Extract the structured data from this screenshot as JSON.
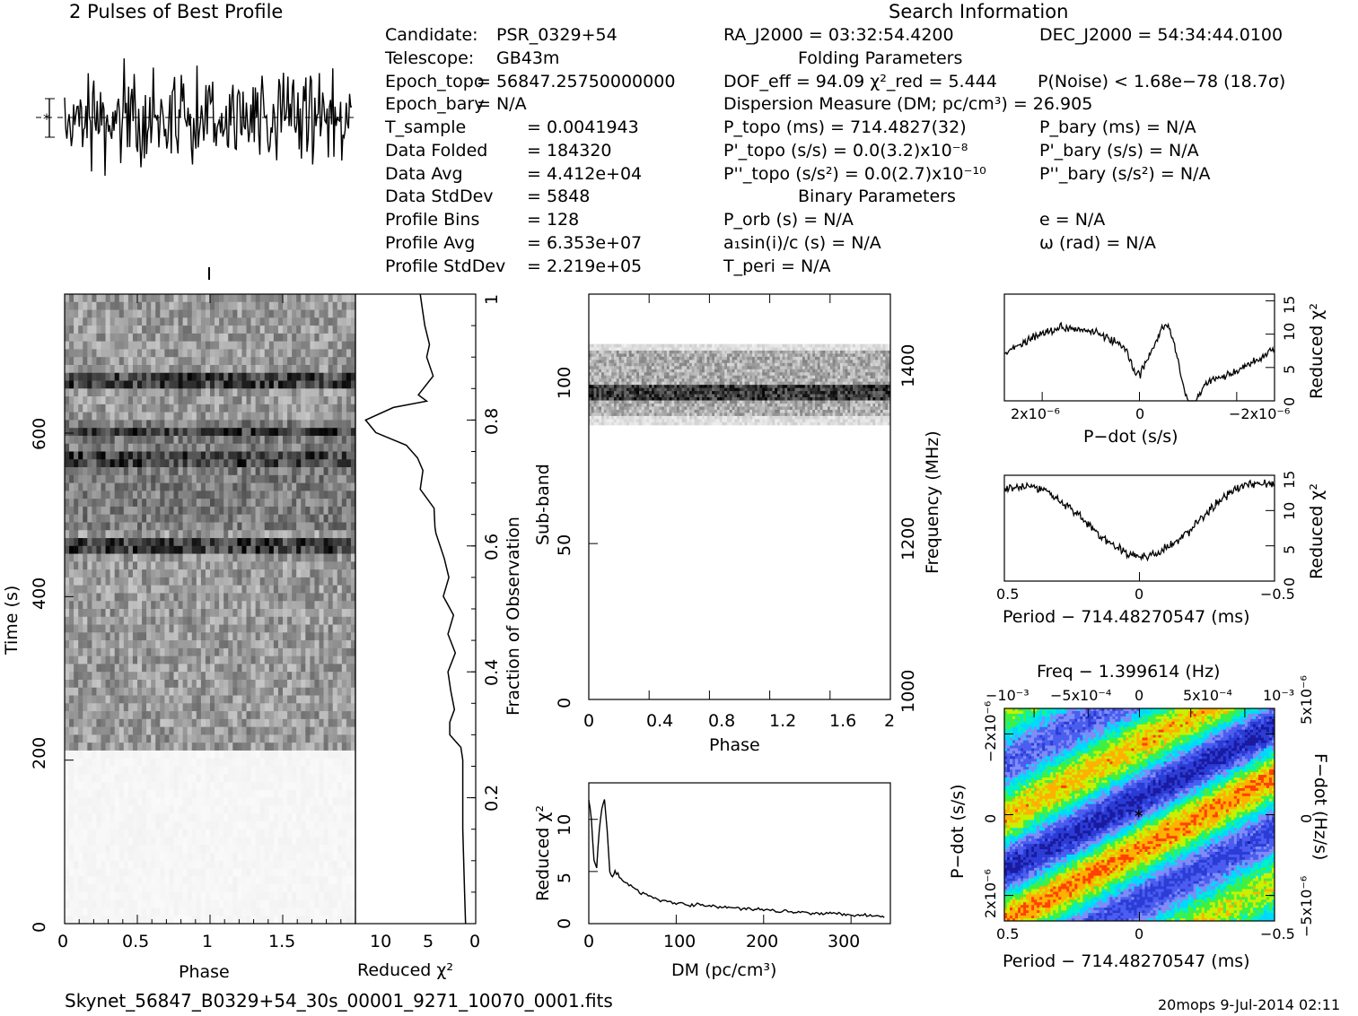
{
  "header": {
    "profile_title": "2 Pulses of Best Profile",
    "search_title": "Search Information",
    "folding_title": "Folding Parameters",
    "binary_title": "Binary Parameters"
  },
  "info_left": [
    {
      "label": "Candidate:",
      "value": "PSR_0329+54"
    },
    {
      "label": "Telescope:",
      "value": "GB43m"
    },
    {
      "label": "Epoch_topo",
      "value": "= 56847.25750000000"
    },
    {
      "label": "Epoch_bary",
      "value": "= N/A"
    },
    {
      "label": "T_sample",
      "value": "0.0041943"
    },
    {
      "label": "Data Folded",
      "value": "184320"
    },
    {
      "label": "Data Avg",
      "value": "4.412e+04"
    },
    {
      "label": "Data StdDev",
      "value": "5848"
    },
    {
      "label": "Profile Bins",
      "value": "128"
    },
    {
      "label": "Profile Avg",
      "value": "6.353e+07"
    },
    {
      "label": "Profile StdDev",
      "value": "2.219e+05"
    }
  ],
  "info_right": {
    "ra": "RA_J2000 = 03:32:54.4200",
    "dec": "DEC_J2000 = 54:34:44.0100",
    "dof": "DOF_eff = 94.09  χ²_red = 5.444",
    "pnoise": "P(Noise) < 1.68e−78   (18.7σ)",
    "dm": "Dispersion Measure (DM; pc/cm³) = 26.905",
    "ptopo": "P_topo (ms) =  714.4827(32)",
    "pbary": "P_bary (ms) = N/A",
    "pdtopo": "P'_topo (s/s) = 0.0(3.2)x10⁻⁸",
    "pdbary": "P'_bary (s/s) = N/A",
    "pddtopo": "P''_topo (s/s²) = 0.0(2.7)x10⁻¹⁰",
    "pddbary": "P''_bary (s/s²) = N/A",
    "porb": "P_orb (s) = N/A",
    "ecc": "e = N/A",
    "asini": "a₁sin(i)/c (s) = N/A",
    "omega": "ω (rad) = N/A",
    "tperi": "T_peri = N/A"
  },
  "axes": {
    "time_ylabel": "Time (s)",
    "phase_xlabel": "Phase",
    "redchi_xlabel": "Reduced χ²",
    "fraction_label": "Fraction of Observation",
    "subband_label": "Sub-band",
    "freq_label": "Frequency (MHz)",
    "phase2_label": "Phase",
    "dm_xlabel": "DM (pc/cm³)",
    "dm_ylabel": "Reduced χ²",
    "pdot_xlabel": "P−dot (s/s)",
    "pdot_ylabel": "Reduced χ²",
    "period_xlabel": "Period − 714.48270547 (ms)",
    "period_ylabel": "Reduced χ²",
    "freq_top_label": "Freq − 1.399614 (Hz)",
    "ppdot_xlabel": "Period − 714.48270547 (ms)",
    "ppdot_ylabel": "P−dot (s/s)",
    "fdot_label": "F−dot (Hz/s)"
  },
  "ticks": {
    "time_y": [
      "0",
      "200",
      "400",
      "600"
    ],
    "phase_x": [
      "0",
      "0.5",
      "1",
      "1.5"
    ],
    "redchi_x": [
      "10",
      "5",
      "0"
    ],
    "fraction": [
      "0.2",
      "0.4",
      "0.6",
      "0.8",
      "1"
    ],
    "subband": [
      "0",
      "50",
      "100"
    ],
    "freq": [
      "1000",
      "1200",
      "1400"
    ],
    "phase2": [
      "0",
      "0.4",
      "0.8",
      "1.2",
      "1.6",
      "2"
    ],
    "dm_x": [
      "0",
      "100",
      "200",
      "300"
    ],
    "dm_y": [
      "0",
      "5",
      "10"
    ],
    "pdot_x": [
      "2x10⁻⁶",
      "0",
      "−2x10⁻⁶"
    ],
    "chi_y": [
      "0",
      "5",
      "10",
      "15"
    ],
    "period_x": [
      "0.5",
      "0",
      "−0.5"
    ],
    "freq_top": [
      "−10⁻³",
      "−5x10⁻⁴",
      "0",
      "5x10⁻⁴",
      "10⁻³"
    ],
    "ppdot_y": [
      "−2x10⁻⁶",
      "0",
      "2x10⁻⁶"
    ],
    "fdot": [
      "5x10⁻⁶",
      "0",
      "−5x10⁻⁶"
    ]
  },
  "footer": {
    "filename": "Skynet_56847_B0329+54_30s_00001_9271_10070_0001.fits",
    "stamp": "20mops   9-Jul-2014 02:11"
  },
  "chart_data": [
    {
      "type": "line",
      "name": "profile",
      "title": "2 Pulses of Best Profile",
      "x_range": [
        0,
        2
      ],
      "bins": 128,
      "pulses": 2
    },
    {
      "type": "heatmap",
      "name": "time-phase",
      "xlabel": "Phase",
      "ylabel": "Time (s)",
      "xlim": [
        0,
        2
      ],
      "ylim": [
        0,
        770
      ],
      "dark_bands_s": [
        [
          655,
          675
        ],
        [
          555,
          575
        ],
        [
          450,
          470
        ],
        [
          595,
          610
        ]
      ],
      "data_start_s": 210
    },
    {
      "type": "line",
      "name": "reduced-chi2-vs-time",
      "xlabel": "Reduced χ²",
      "xlim": [
        13,
        0
      ],
      "x": [
        6,
        5.8,
        5.5,
        5,
        5.3,
        4.6,
        6.2,
        5.3,
        8.9,
        11.9,
        10.8,
        7.5,
        6.3,
        5.7,
        6.0,
        4.5,
        4.4,
        4.3,
        3.4,
        2.9,
        3.5,
        2.4,
        3.0,
        2.2,
        3.0,
        2.7,
        2.3,
        2.8,
        2.8,
        1.6,
        1.4,
        1.4,
        1.4,
        1.3,
        1.2,
        1.1
      ],
      "y_fraction": [
        1.0,
        0.98,
        0.95,
        0.92,
        0.9,
        0.87,
        0.84,
        0.83,
        0.82,
        0.8,
        0.78,
        0.76,
        0.74,
        0.72,
        0.69,
        0.66,
        0.63,
        0.62,
        0.58,
        0.55,
        0.52,
        0.49,
        0.46,
        0.43,
        0.4,
        0.37,
        0.34,
        0.32,
        0.3,
        0.28,
        0.26,
        0.2,
        0.15,
        0.1,
        0.05,
        0.0
      ]
    },
    {
      "type": "heatmap",
      "name": "subband-phase",
      "xlabel": "Phase",
      "ylabel": "Sub-band",
      "xlim": [
        0,
        2
      ],
      "ylim": [
        0,
        128
      ],
      "active_subbands": [
        88,
        114
      ],
      "dark_subbands": [
        96,
        100
      ]
    },
    {
      "type": "line",
      "name": "dm-chi2",
      "xlabel": "DM (pc/cm³)",
      "ylabel": "Reduced χ²",
      "xlim": [
        0,
        345
      ],
      "ylim": [
        0,
        13.5
      ],
      "x": [
        0,
        3,
        6,
        9,
        12,
        15,
        18,
        21,
        24,
        27,
        30,
        35,
        40,
        50,
        60,
        70,
        80,
        100,
        120,
        150,
        180,
        210,
        240,
        270,
        300,
        320,
        340
      ],
      "y": [
        12,
        10,
        6,
        5.5,
        9,
        11,
        12,
        9,
        5,
        4.5,
        5,
        4.5,
        4.0,
        3.5,
        3.0,
        2.6,
        2.3,
        2.0,
        1.8,
        1.6,
        1.4,
        1.3,
        1.1,
        1.0,
        0.9,
        0.8,
        0.7
      ]
    },
    {
      "type": "line",
      "name": "pdot-chi2",
      "xlabel": "P−dot (s/s)",
      "ylabel": "Reduced χ²",
      "xlim": [
        2.6e-06,
        -2.6e-06
      ],
      "ylim": [
        0,
        16
      ]
    },
    {
      "type": "line",
      "name": "period-chi2",
      "xlabel": "Period − 714.48270547 (ms)",
      "ylabel": "Reduced χ²",
      "xlim": [
        0.5,
        -0.5
      ],
      "ylim": [
        0,
        15
      ]
    },
    {
      "type": "heatmap",
      "name": "period-pdot",
      "xlabel": "Period − 714.48270547 (ms)",
      "ylabel": "P−dot (s/s)",
      "xlim": [
        0.5,
        -0.5
      ],
      "ylim": [
        2.6e-06,
        -2.6e-06
      ],
      "top_label": "Freq − 1.399614 (Hz)",
      "right_label": "F−dot (Hz/s)",
      "best_marker": [
        0,
        0
      ]
    }
  ]
}
